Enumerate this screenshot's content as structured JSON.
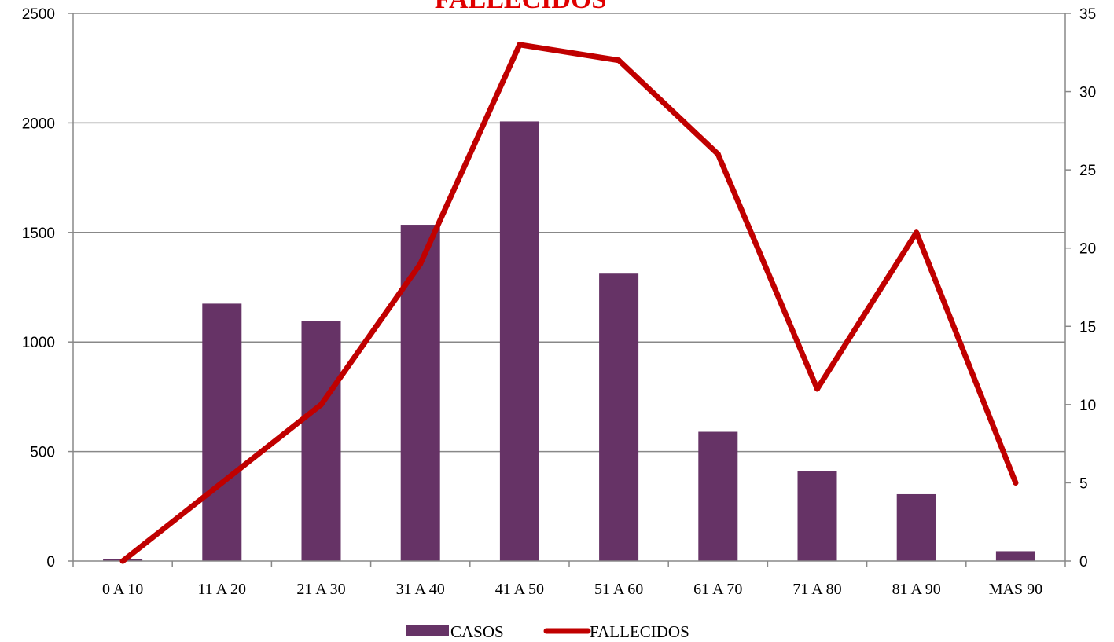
{
  "chart_data": {
    "type": "bar",
    "title": "FALLECIDOS",
    "title_color": "#e00000",
    "categories": [
      "0 A 10",
      "11 A 20",
      "21 A 30",
      "31 A 40",
      "41 A 50",
      "51 A 60",
      "61 A 70",
      "71 A 80",
      "81 A 90",
      "MAS 90"
    ],
    "series": [
      {
        "name": "CASOS",
        "type": "bar",
        "axis": "left",
        "color": "#663366",
        "values": [
          8,
          1175,
          1095,
          1535,
          2007,
          1312,
          590,
          410,
          305,
          45
        ]
      },
      {
        "name": "FALLECIDOS",
        "type": "line",
        "axis": "right",
        "color": "#c00000",
        "values": [
          0,
          5,
          10,
          19,
          33,
          32,
          26,
          11,
          21,
          5
        ]
      }
    ],
    "y_left": {
      "min": 0,
      "max": 2500,
      "step": 500,
      "ticks": [
        "0",
        "500",
        "1000",
        "1500",
        "2000",
        "2500"
      ]
    },
    "y_right": {
      "min": 0,
      "max": 35,
      "step": 5,
      "ticks": [
        "0",
        "5",
        "10",
        "15",
        "20",
        "25",
        "30",
        "35"
      ]
    },
    "grid": true,
    "legend": "bottom"
  }
}
